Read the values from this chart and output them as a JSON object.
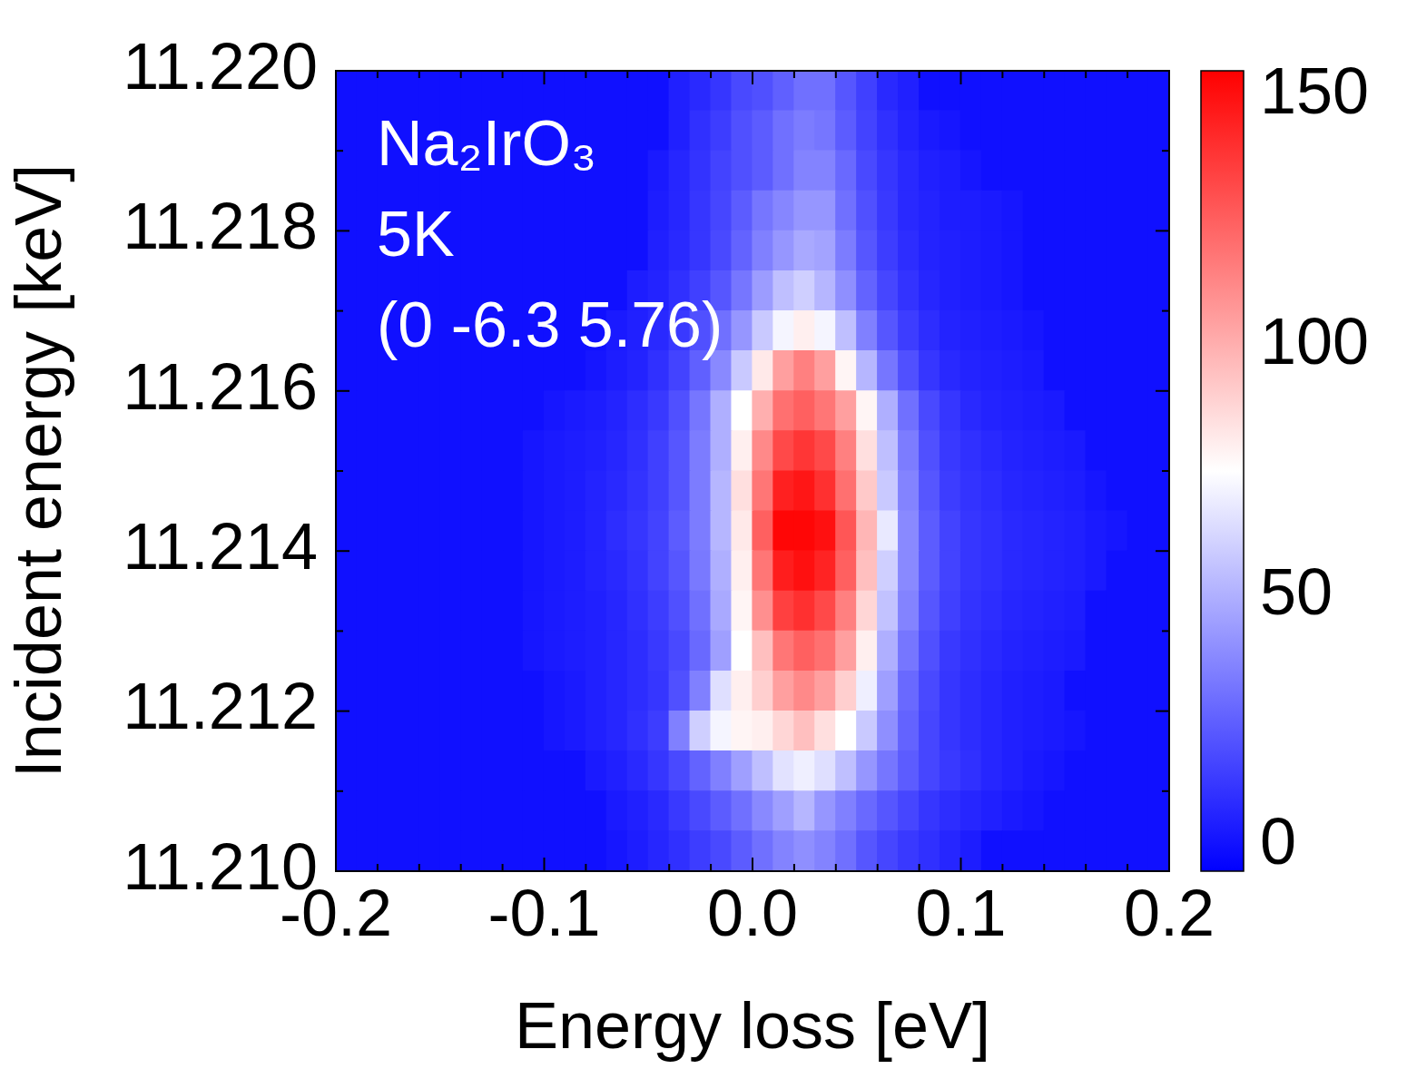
{
  "chart_data": {
    "type": "heatmap",
    "xlabel": "Energy loss [eV]",
    "ylabel": "Incident energy [keV]",
    "annotations": [
      "Na₂IrO₃",
      "5K",
      "(0 -6.3 5.76)"
    ],
    "x": [
      -0.195,
      -0.185,
      -0.175,
      -0.165,
      -0.155,
      -0.145,
      -0.135,
      -0.125,
      -0.115,
      -0.105,
      -0.095,
      -0.085,
      -0.075,
      -0.065,
      -0.055,
      -0.045,
      -0.035,
      -0.025,
      -0.015,
      -0.005,
      0.005,
      0.015,
      0.025,
      0.035,
      0.045,
      0.055,
      0.065,
      0.075,
      0.085,
      0.095,
      0.105,
      0.115,
      0.125,
      0.135,
      0.145,
      0.155,
      0.165,
      0.175,
      0.185,
      0.195
    ],
    "y": [
      11.21975,
      11.21925,
      11.21875,
      11.21825,
      11.21775,
      11.21725,
      11.21675,
      11.21625,
      11.21575,
      11.21525,
      11.21475,
      11.21425,
      11.21375,
      11.21325,
      11.21275,
      11.21225,
      11.21175,
      11.21125,
      11.21075,
      11.21025
    ],
    "xlim": [
      -0.2,
      0.2
    ],
    "xticks": [
      -0.2,
      {
        "value": -0.18,
        "label": null
      },
      {
        "value": -0.16,
        "label": null
      },
      {
        "value": -0.14,
        "label": null
      },
      {
        "value": -0.12,
        "label": null
      },
      -0.1,
      {
        "value": -0.08,
        "label": null
      },
      {
        "value": -0.06,
        "label": null
      },
      {
        "value": -0.04,
        "label": null
      },
      {
        "value": -0.02,
        "label": null
      },
      {
        "value": 0,
        "label": "0.0"
      },
      {
        "value": 0.02,
        "label": null
      },
      {
        "value": 0.04,
        "label": null
      },
      {
        "value": 0.06,
        "label": null
      },
      {
        "value": 0.08,
        "label": null
      },
      0.1,
      {
        "value": 0.12,
        "label": null
      },
      {
        "value": 0.14,
        "label": null
      },
      {
        "value": 0.16,
        "label": null
      },
      {
        "value": 0.18,
        "label": null
      },
      0.2
    ],
    "ylim": [
      11.21,
      11.22
    ],
    "yticks": [
      {
        "value": 11.21,
        "label": "11.210"
      },
      {
        "value": 11.211,
        "label": null
      },
      11.212,
      {
        "value": 11.213,
        "label": null
      },
      11.214,
      {
        "value": 11.215,
        "label": null
      },
      11.216,
      {
        "value": 11.217,
        "label": null
      },
      11.218,
      {
        "value": 11.219,
        "label": null
      },
      {
        "value": 11.22,
        "label": "11.220"
      }
    ],
    "clim": [
      -5,
      155
    ],
    "cticks": [
      0,
      50,
      100,
      150
    ],
    "cells": [
      [
        0,
        0,
        0,
        0,
        0,
        0,
        0,
        0,
        0,
        0,
        0,
        0,
        0,
        0,
        0,
        0,
        5,
        8,
        12,
        18,
        20,
        25,
        30,
        30,
        22,
        15,
        8,
        5,
        0,
        0,
        0,
        0,
        0,
        0,
        0,
        0,
        0,
        0,
        0,
        0
      ],
      [
        0,
        0,
        0,
        0,
        0,
        0,
        0,
        0,
        0,
        0,
        0,
        0,
        0,
        0,
        0,
        0,
        5,
        10,
        14,
        20,
        24,
        30,
        34,
        32,
        24,
        16,
        10,
        6,
        3,
        2,
        0,
        0,
        0,
        0,
        0,
        0,
        0,
        0,
        0,
        0
      ],
      [
        0,
        0,
        0,
        0,
        0,
        0,
        0,
        0,
        0,
        0,
        0,
        0,
        0,
        0,
        0,
        3,
        7,
        11,
        16,
        20,
        24,
        30,
        36,
        36,
        28,
        18,
        12,
        8,
        5,
        4,
        2,
        0,
        0,
        0,
        0,
        0,
        0,
        0,
        0,
        0
      ],
      [
        0,
        0,
        0,
        0,
        0,
        0,
        0,
        0,
        0,
        0,
        0,
        0,
        0,
        0,
        0,
        4,
        7,
        12,
        17,
        24,
        32,
        37,
        42,
        42,
        30,
        20,
        13,
        8,
        6,
        4,
        4,
        3,
        2,
        0,
        0,
        0,
        0,
        0,
        0,
        0
      ],
      [
        0,
        0,
        0,
        0,
        0,
        0,
        0,
        0,
        0,
        0,
        0,
        0,
        0,
        0,
        0,
        5,
        8,
        12,
        18,
        26,
        35,
        42,
        48,
        46,
        34,
        22,
        14,
        9,
        6,
        5,
        4,
        3,
        2,
        0,
        0,
        0,
        0,
        0,
        0,
        0
      ],
      [
        0,
        0,
        0,
        0,
        0,
        0,
        0,
        0,
        0,
        0,
        0,
        0,
        0,
        0,
        4,
        6,
        10,
        15,
        22,
        32,
        44,
        55,
        60,
        52,
        40,
        26,
        17,
        11,
        7,
        5,
        4,
        3,
        2,
        0,
        0,
        0,
        0,
        0,
        0,
        0
      ],
      [
        0,
        0,
        0,
        0,
        0,
        0,
        0,
        0,
        0,
        0,
        0,
        0,
        0,
        3,
        5,
        8,
        13,
        20,
        30,
        42,
        58,
        72,
        80,
        72,
        55,
        35,
        22,
        14,
        9,
        6,
        5,
        4,
        3,
        2,
        0,
        0,
        0,
        0,
        0,
        0
      ],
      [
        0,
        0,
        0,
        0,
        0,
        0,
        0,
        0,
        0,
        0,
        0,
        0,
        2,
        4,
        6,
        10,
        16,
        25,
        38,
        58,
        82,
        105,
        115,
        105,
        78,
        52,
        32,
        20,
        12,
        8,
        6,
        5,
        4,
        3,
        0,
        0,
        0,
        0,
        0,
        0
      ],
      [
        0,
        0,
        0,
        0,
        0,
        0,
        0,
        0,
        0,
        0,
        2,
        3,
        4,
        6,
        9,
        13,
        20,
        32,
        50,
        75,
        100,
        120,
        125,
        118,
        105,
        78,
        50,
        30,
        18,
        12,
        8,
        6,
        5,
        4,
        3,
        0,
        0,
        0,
        0,
        0
      ],
      [
        0,
        0,
        0,
        0,
        0,
        0,
        0,
        0,
        0,
        2,
        3,
        4,
        5,
        7,
        10,
        15,
        22,
        34,
        50,
        80,
        112,
        132,
        138,
        132,
        115,
        85,
        55,
        34,
        20,
        13,
        10,
        8,
        6,
        5,
        4,
        3,
        0,
        0,
        0,
        0
      ],
      [
        0,
        0,
        0,
        0,
        0,
        0,
        0,
        0,
        0,
        2,
        3,
        4,
        6,
        8,
        11,
        15,
        22,
        34,
        52,
        85,
        118,
        145,
        148,
        140,
        120,
        92,
        58,
        36,
        22,
        14,
        11,
        9,
        7,
        6,
        5,
        4,
        2,
        0,
        0,
        0
      ],
      [
        0,
        0,
        0,
        0,
        0,
        0,
        0,
        0,
        0,
        2,
        3,
        4,
        6,
        9,
        12,
        16,
        24,
        34,
        52,
        82,
        125,
        153,
        153,
        150,
        128,
        98,
        68,
        38,
        24,
        16,
        12,
        10,
        8,
        7,
        6,
        5,
        3,
        2,
        0,
        0
      ],
      [
        0,
        0,
        0,
        0,
        0,
        0,
        0,
        0,
        0,
        2,
        3,
        4,
        6,
        8,
        11,
        16,
        22,
        33,
        50,
        80,
        118,
        146,
        150,
        144,
        125,
        95,
        60,
        38,
        24,
        16,
        12,
        10,
        8,
        7,
        6,
        5,
        3,
        0,
        0,
        0
      ],
      [
        0,
        0,
        0,
        0,
        0,
        0,
        0,
        0,
        0,
        2,
        3,
        4,
        5,
        7,
        10,
        14,
        20,
        30,
        48,
        78,
        110,
        135,
        140,
        132,
        115,
        88,
        56,
        36,
        22,
        15,
        11,
        9,
        7,
        6,
        5,
        4,
        0,
        0,
        0,
        0
      ],
      [
        0,
        0,
        0,
        0,
        0,
        0,
        0,
        0,
        0,
        2,
        3,
        4,
        5,
        7,
        9,
        13,
        18,
        28,
        45,
        75,
        95,
        118,
        125,
        120,
        105,
        80,
        50,
        32,
        20,
        13,
        10,
        8,
        6,
        5,
        4,
        3,
        0,
        0,
        0,
        0
      ],
      [
        0,
        0,
        0,
        0,
        0,
        0,
        0,
        0,
        0,
        0,
        2,
        3,
        5,
        7,
        9,
        12,
        20,
        35,
        65,
        80,
        90,
        105,
        112,
        105,
        90,
        70,
        45,
        28,
        18,
        12,
        9,
        7,
        5,
        4,
        3,
        0,
        0,
        0,
        0,
        0
      ],
      [
        0,
        0,
        0,
        0,
        0,
        0,
        0,
        0,
        0,
        0,
        2,
        3,
        5,
        7,
        10,
        14,
        35,
        60,
        72,
        78,
        80,
        88,
        95,
        85,
        75,
        58,
        40,
        26,
        17,
        12,
        9,
        7,
        5,
        4,
        3,
        2,
        0,
        0,
        0,
        0
      ],
      [
        0,
        0,
        0,
        0,
        0,
        0,
        0,
        0,
        0,
        0,
        0,
        0,
        3,
        5,
        8,
        12,
        18,
        26,
        35,
        45,
        55,
        66,
        70,
        65,
        55,
        42,
        32,
        24,
        17,
        13,
        10,
        7,
        5,
        3,
        2,
        0,
        0,
        0,
        0,
        0
      ],
      [
        0,
        0,
        0,
        0,
        0,
        0,
        0,
        0,
        0,
        0,
        0,
        0,
        0,
        3,
        5,
        8,
        13,
        18,
        24,
        30,
        38,
        45,
        52,
        42,
        35,
        28,
        22,
        17,
        12,
        9,
        7,
        5,
        3,
        2,
        0,
        0,
        0,
        0,
        0,
        0
      ],
      [
        0,
        0,
        0,
        0,
        0,
        0,
        0,
        0,
        0,
        0,
        0,
        0,
        0,
        2,
        4,
        7,
        10,
        14,
        18,
        24,
        30,
        36,
        40,
        36,
        30,
        22,
        17,
        13,
        10,
        7,
        4,
        0,
        0,
        0,
        0,
        0,
        0,
        0,
        0,
        0
      ]
    ]
  }
}
